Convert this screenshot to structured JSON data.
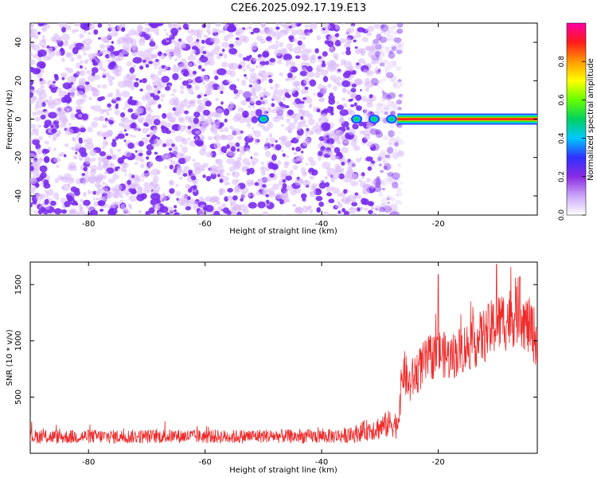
{
  "title": "C2E6.2025.092.17.19.E13",
  "colors": {
    "snr_line": "#ee2b2b",
    "spec_purple": "#7a2cf0",
    "spec_light": "#d8b8fb",
    "axis": "#000000"
  },
  "chart_data": [
    {
      "type": "heatmap",
      "name": "spectrogram",
      "title": "C2E6.2025.092.17.19.E13",
      "xlabel": "Height of straight line (km)",
      "ylabel": "Frequency (Hz)",
      "xlim": [
        -90,
        -3
      ],
      "ylim": [
        -50,
        50
      ],
      "x_ticks": [
        -80,
        -60,
        -40,
        -20
      ],
      "y_ticks": [
        -40,
        -20,
        0,
        20,
        40
      ],
      "noise_region_x": [
        -90,
        -27
      ],
      "carrier_frequency": 0,
      "carrier_start_x": -27,
      "carrier_blobs_x": [
        -50,
        -34,
        -31,
        -28
      ],
      "colorbar": {
        "label": "Normalized spectral amplitude",
        "range": [
          0.0,
          1.0
        ],
        "ticks": [
          0.0,
          0.2,
          0.4,
          0.6,
          0.8
        ],
        "colors": [
          "#ffffff",
          "#c9a6f9",
          "#8a2be2",
          "#3030ff",
          "#00c8ff",
          "#00d060",
          "#66ff00",
          "#ffff00",
          "#ff9900",
          "#ff1a1a",
          "#ff00a8"
        ]
      }
    },
    {
      "type": "line",
      "name": "snr",
      "title": "",
      "xlabel": "Height of straight line (km)",
      "ylabel": "SNR (10 * v/v)",
      "xlim": [
        -90,
        -3
      ],
      "ylim": [
        0,
        1700
      ],
      "x_ticks": [
        -80,
        -60,
        -40,
        -20
      ],
      "y_ticks": [
        500,
        1000,
        1500
      ],
      "series": [
        {
          "name": "SNR",
          "x": [
            -90,
            -85,
            -80,
            -75,
            -70,
            -65,
            -60,
            -55,
            -50,
            -45,
            -40,
            -35,
            -32,
            -30,
            -28,
            -27,
            -26,
            -25,
            -24,
            -22,
            -20,
            -18,
            -16,
            -14,
            -12,
            -10,
            -8,
            -6,
            -5,
            -4,
            -3
          ],
          "values": [
            150,
            145,
            150,
            148,
            150,
            152,
            150,
            148,
            155,
            150,
            150,
            160,
            210,
            230,
            270,
            250,
            750,
            600,
            700,
            820,
            900,
            850,
            920,
            980,
            1050,
            1150,
            1200,
            1230,
            1150,
            1100,
            1000
          ],
          "spread": [
            90,
            90,
            90,
            90,
            90,
            90,
            90,
            90,
            90,
            90,
            90,
            100,
            140,
            160,
            180,
            180,
            300,
            260,
            280,
            300,
            300,
            300,
            320,
            330,
            360,
            380,
            420,
            360,
            380,
            380,
            380
          ],
          "peaks": [
            {
              "x": -20,
              "value": 1590
            },
            {
              "x": -10,
              "value": 1680
            },
            {
              "x": -6,
              "value": 1570
            }
          ]
        }
      ]
    }
  ]
}
